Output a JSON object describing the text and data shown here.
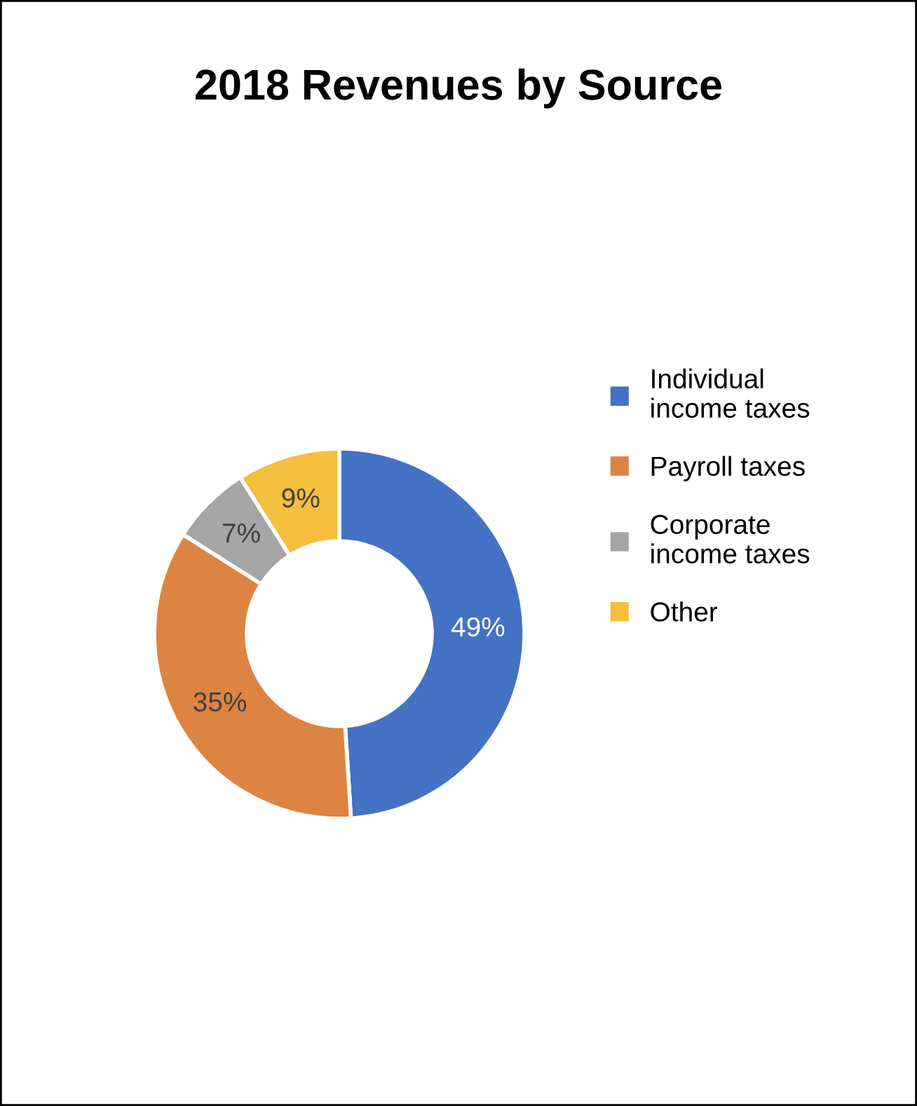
{
  "chart_data": {
    "type": "donut",
    "title": "2018 Revenues by Source",
    "categories": [
      "Individual\nincome taxes",
      "Payroll taxes",
      "Corporate\nincome taxes",
      "Other"
    ],
    "values": [
      49,
      35,
      7,
      9
    ],
    "colors": [
      "#4472c4",
      "#dd8442",
      "#a5a5a5",
      "#f4bf3f"
    ],
    "value_labels": [
      "49%",
      "35%",
      "7%",
      "9%"
    ],
    "legend": "right"
  }
}
